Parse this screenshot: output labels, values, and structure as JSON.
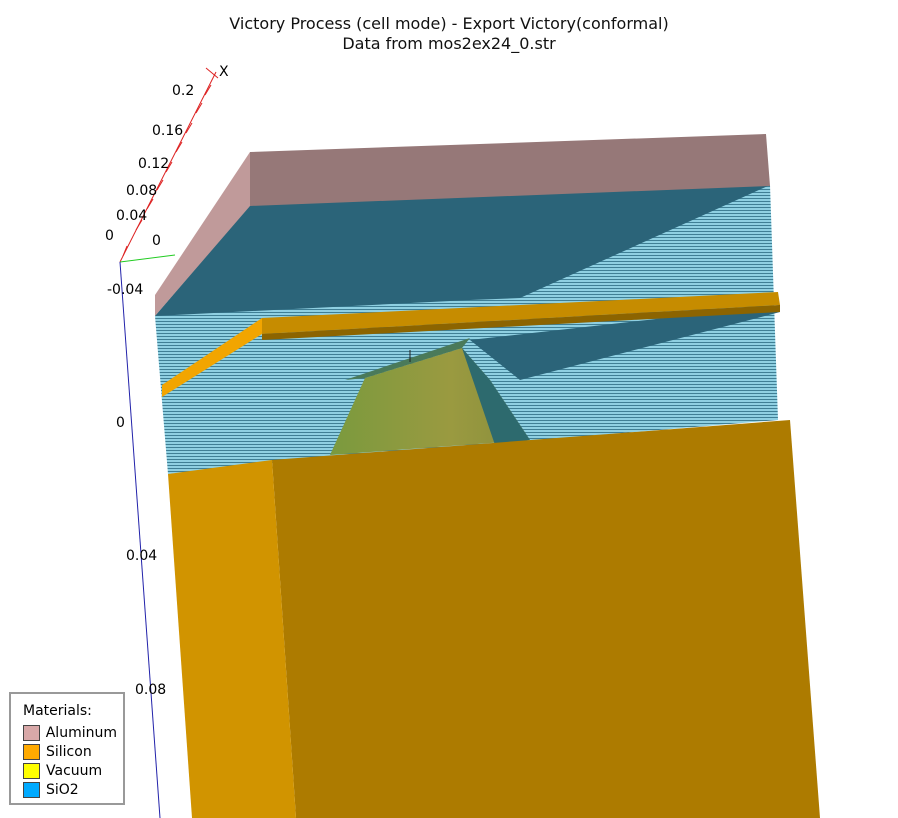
{
  "title": {
    "line1": "Victory Process  (cell mode) - Export Victory(conformal)",
    "line2": "Data from mos2ex24_0.str"
  },
  "axis": {
    "x_label": "X",
    "x_ticks": [
      "0.2",
      "0.16",
      "0.12",
      "0.08",
      "0.04",
      "0"
    ],
    "y_origin_label": "0",
    "z_ticks": [
      "-0.04",
      "0",
      "0.04",
      "0.08"
    ]
  },
  "legend": {
    "title": "Materials:",
    "items": [
      {
        "label": "Aluminum",
        "color": "#d8a8a8"
      },
      {
        "label": "Silicon",
        "color": "#ffaa00"
      },
      {
        "label": "Vacuum",
        "color": "#ffff00"
      },
      {
        "label": "SiO2",
        "color": "#00aaff"
      }
    ]
  },
  "colors": {
    "aluminum_top": "#967878",
    "aluminum_side": "#c09a9a",
    "sio2_dark": "#2a6278",
    "sio2_light": "#90cfe0",
    "silicon_front": "#ad7b00",
    "silicon_side": "#d19400",
    "gate_top": "#c78d00",
    "gate_side": "#f0a300",
    "vacuum_mesa": "#8c8e3c",
    "x_axis": "#dd2222",
    "y_axis": "#22cc22",
    "z_axis": "#2222aa"
  }
}
